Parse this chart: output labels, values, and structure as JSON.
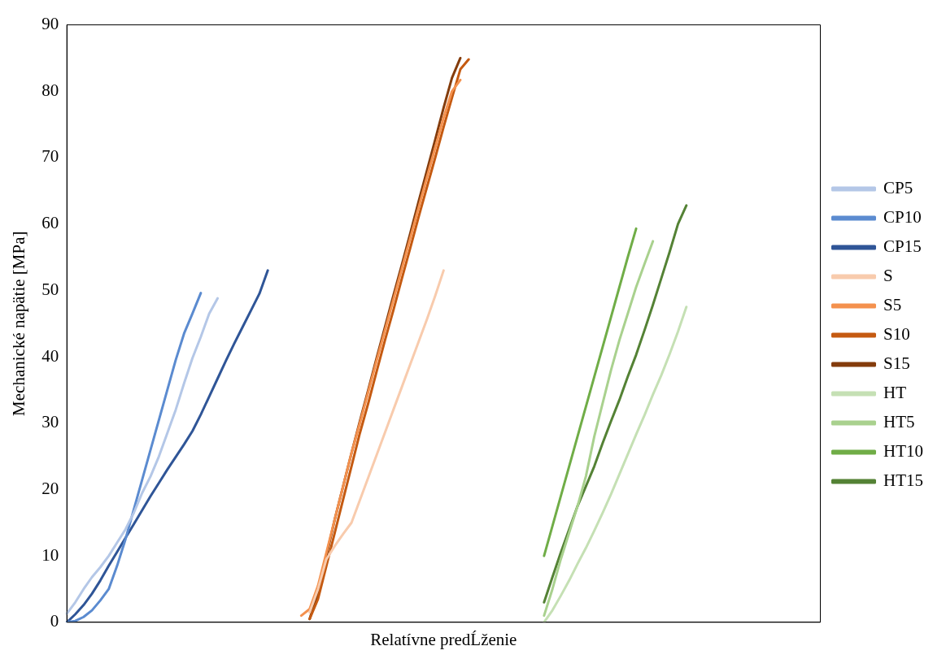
{
  "chart_data": {
    "type": "line",
    "xlabel": "Relatívne predĹženie",
    "ylabel": "Mechanické napätie [MPa]",
    "ylim": [
      0,
      90
    ],
    "yticks": [
      0,
      10,
      20,
      30,
      40,
      50,
      60,
      70,
      80,
      90
    ],
    "grid": false,
    "legend": "right",
    "tick_labels": "y",
    "marker": "none",
    "line_style": "solid",
    "categories": [
      null,
      null,
      null,
      null,
      null,
      null,
      null,
      null,
      null,
      null,
      null,
      null,
      null,
      null,
      null,
      null,
      null,
      null,
      null,
      null,
      null,
      null,
      null,
      null,
      null,
      null,
      null,
      null,
      null,
      null,
      null,
      null,
      null,
      null,
      null,
      null,
      null,
      null,
      null,
      null,
      null,
      null,
      null,
      null,
      null,
      null,
      null,
      null,
      null,
      null,
      null,
      null,
      null,
      null,
      null,
      null,
      null,
      null,
      null,
      null,
      null,
      null,
      null,
      null,
      null,
      null,
      null,
      null,
      null,
      null,
      null,
      null,
      null,
      null,
      null,
      null,
      null,
      null,
      null,
      null,
      null,
      null,
      null,
      null,
      null,
      null,
      null,
      null,
      null,
      null,
      null
    ],
    "series": [
      {
        "name": "CP5",
        "color": "#b4c7e7",
        "values": [
          1.3,
          3,
          5,
          6.8,
          8.3,
          10,
          12,
          14,
          16.5,
          19.5,
          22,
          25,
          28.5,
          32,
          36,
          39.8,
          43,
          46.5,
          48.8,
          null,
          null,
          null,
          null,
          null,
          null,
          null,
          null,
          null,
          null,
          null,
          null,
          null,
          null,
          null,
          null,
          null,
          null,
          null,
          null,
          null,
          null,
          null,
          null,
          null,
          null,
          null,
          null,
          null,
          null,
          null,
          null,
          null,
          null,
          null,
          null,
          null,
          null,
          null,
          null,
          null,
          null,
          null,
          null,
          null,
          null,
          null,
          null,
          null,
          null,
          null,
          null,
          null,
          null,
          null,
          null,
          null,
          null,
          null,
          null,
          null,
          null,
          null,
          null,
          null,
          null,
          null,
          null,
          null,
          null,
          null,
          null
        ]
      },
      {
        "name": "CP10",
        "color": "#5b8bd0",
        "values": [
          0,
          0.2,
          0.8,
          1.8,
          3.3,
          5,
          8.5,
          12.5,
          17,
          21.5,
          26,
          30.5,
          35,
          39.5,
          43.5,
          46.5,
          49.6,
          null,
          null,
          null,
          null,
          null,
          null,
          null,
          null,
          null,
          null,
          null,
          null,
          null,
          null,
          null,
          null,
          null,
          null,
          null,
          null,
          null,
          null,
          null,
          null,
          null,
          null,
          null,
          null,
          null,
          null,
          null,
          null,
          null,
          null,
          null,
          null,
          null,
          null,
          null,
          null,
          null,
          null,
          null,
          null,
          null,
          null,
          null,
          null,
          null,
          null,
          null,
          null,
          null,
          null,
          null,
          null,
          null,
          null,
          null,
          null,
          null,
          null,
          null,
          null,
          null,
          null,
          null,
          null,
          null,
          null,
          null,
          null,
          null,
          null
        ]
      },
      {
        "name": "CP15",
        "color": "#2f5597",
        "values": [
          0,
          1.2,
          2.6,
          4.3,
          6.3,
          8.5,
          10.6,
          12.7,
          14.8,
          16.9,
          19,
          21,
          23,
          24.9,
          26.8,
          28.8,
          31.3,
          34,
          36.7,
          39.4,
          42,
          44.5,
          47,
          49.5,
          53,
          null,
          null,
          null,
          null,
          null,
          null,
          null,
          null,
          null,
          null,
          null,
          null,
          null,
          null,
          null,
          null,
          null,
          null,
          null,
          null,
          null,
          null,
          null,
          null,
          null,
          null,
          null,
          null,
          null,
          null,
          null,
          null,
          null,
          null,
          null,
          null,
          null,
          null,
          null,
          null,
          null,
          null,
          null,
          null,
          null,
          null,
          null,
          null,
          null,
          null,
          null,
          null,
          null,
          null,
          null,
          null,
          null,
          null,
          null,
          null,
          null,
          null,
          null,
          null,
          null,
          null
        ]
      },
      {
        "name": "S",
        "color": "#f8cbad",
        "values": [
          null,
          null,
          null,
          null,
          null,
          null,
          null,
          null,
          null,
          null,
          null,
          null,
          null,
          null,
          null,
          null,
          null,
          null,
          null,
          null,
          null,
          null,
          null,
          null,
          null,
          null,
          null,
          null,
          null,
          1.5,
          5,
          9.5,
          11.5,
          13.3,
          15,
          18.4,
          21.8,
          25.2,
          28.6,
          32,
          35.4,
          38.8,
          42.2,
          45.6,
          49.2,
          53,
          null,
          null,
          null,
          null,
          null,
          null,
          null,
          null,
          null,
          null,
          null,
          null,
          null,
          null,
          null,
          null,
          null,
          null,
          null,
          null,
          null,
          null,
          null,
          null,
          null,
          null,
          null,
          null,
          null,
          null,
          null,
          null,
          null,
          null,
          null,
          null,
          null,
          null,
          null,
          null,
          null,
          null,
          null,
          null,
          null
        ]
      },
      {
        "name": "S5",
        "color": "#f4914e",
        "values": [
          null,
          null,
          null,
          null,
          null,
          null,
          null,
          null,
          null,
          null,
          null,
          null,
          null,
          null,
          null,
          null,
          null,
          null,
          null,
          null,
          null,
          null,
          null,
          null,
          null,
          null,
          null,
          null,
          1,
          2,
          5.5,
          10.5,
          15.5,
          20.5,
          25.5,
          30,
          34.7,
          39.4,
          44,
          48.6,
          53.2,
          57.8,
          62.4,
          67,
          71.5,
          76,
          80,
          81.7,
          null,
          null,
          null,
          null,
          null,
          null,
          null,
          null,
          null,
          null,
          null,
          null,
          null,
          null,
          null,
          null,
          null,
          null,
          null,
          null,
          null,
          null,
          null,
          null,
          null,
          null,
          null,
          null,
          null,
          null,
          null,
          null,
          null,
          null,
          null,
          null,
          null,
          null,
          null,
          null,
          null,
          null,
          null
        ]
      },
      {
        "name": "S10",
        "color": "#c55a11",
        "values": [
          null,
          null,
          null,
          null,
          null,
          null,
          null,
          null,
          null,
          null,
          null,
          null,
          null,
          null,
          null,
          null,
          null,
          null,
          null,
          null,
          null,
          null,
          null,
          null,
          null,
          null,
          null,
          null,
          null,
          0.5,
          3.5,
          8.5,
          13.5,
          18.5,
          23.5,
          28.5,
          33,
          37.8,
          42.5,
          47,
          51.7,
          56.3,
          61,
          65.5,
          70,
          74.6,
          79,
          83.3,
          84.8,
          null,
          null,
          null,
          null,
          null,
          null,
          null,
          null,
          null,
          null,
          null,
          null,
          null,
          null,
          null,
          null,
          null,
          null,
          null,
          null,
          null,
          null,
          null,
          null,
          null,
          null,
          null,
          null,
          null,
          null,
          null,
          null,
          null,
          null,
          null,
          null,
          null,
          null,
          null,
          null,
          null,
          null
        ]
      },
      {
        "name": "S15",
        "color": "#843c0c",
        "values": [
          null,
          null,
          null,
          null,
          null,
          null,
          null,
          null,
          null,
          null,
          null,
          null,
          null,
          null,
          null,
          null,
          null,
          null,
          null,
          null,
          null,
          null,
          null,
          null,
          null,
          null,
          null,
          null,
          null,
          0.5,
          4.5,
          10,
          15.5,
          20.5,
          25.5,
          30.3,
          35,
          39.8,
          44.5,
          49.2,
          53.8,
          58.5,
          63.3,
          68,
          72.7,
          77.5,
          82,
          85,
          null,
          null,
          null,
          null,
          null,
          null,
          null,
          null,
          null,
          null,
          null,
          null,
          null,
          null,
          null,
          null,
          null,
          null,
          null,
          null,
          null,
          null,
          null,
          null,
          null,
          null,
          null,
          null,
          null,
          null,
          null,
          null,
          null,
          null,
          null,
          null,
          null,
          null,
          null,
          null,
          null,
          null,
          null
        ]
      },
      {
        "name": "HT",
        "color": "#c5e0b4",
        "values": [
          null,
          null,
          null,
          null,
          null,
          null,
          null,
          null,
          null,
          null,
          null,
          null,
          null,
          null,
          null,
          null,
          null,
          null,
          null,
          null,
          null,
          null,
          null,
          null,
          null,
          null,
          null,
          null,
          null,
          null,
          null,
          null,
          null,
          null,
          null,
          null,
          null,
          null,
          null,
          null,
          null,
          null,
          null,
          null,
          null,
          null,
          null,
          null,
          null,
          null,
          null,
          null,
          null,
          null,
          null,
          null,
          null,
          0,
          1.8,
          4,
          6.3,
          8.8,
          11.2,
          13.8,
          16.5,
          19.3,
          22.3,
          25.3,
          28.3,
          31.2,
          34.3,
          37.2,
          40.4,
          43.8,
          47.5,
          null,
          null,
          null,
          null,
          null,
          null,
          null,
          null,
          null,
          null,
          null,
          null,
          null,
          null,
          null,
          null
        ]
      },
      {
        "name": "HT5",
        "color": "#a9d18e",
        "values": [
          null,
          null,
          null,
          null,
          null,
          null,
          null,
          null,
          null,
          null,
          null,
          null,
          null,
          null,
          null,
          null,
          null,
          null,
          null,
          null,
          null,
          null,
          null,
          null,
          null,
          null,
          null,
          null,
          null,
          null,
          null,
          null,
          null,
          null,
          null,
          null,
          null,
          null,
          null,
          null,
          null,
          null,
          null,
          null,
          null,
          null,
          null,
          null,
          null,
          null,
          null,
          null,
          null,
          null,
          null,
          null,
          null,
          1,
          5,
          9.5,
          13.5,
          17.5,
          22,
          28,
          33,
          38,
          42.5,
          46.5,
          50.5,
          54,
          57.4,
          null,
          null,
          null,
          null,
          null,
          null,
          null,
          null,
          null,
          null,
          null,
          null,
          null,
          null,
          null,
          null,
          null,
          null,
          null,
          null
        ]
      },
      {
        "name": "HT10",
        "color": "#70ad47",
        "values": [
          null,
          null,
          null,
          null,
          null,
          null,
          null,
          null,
          null,
          null,
          null,
          null,
          null,
          null,
          null,
          null,
          null,
          null,
          null,
          null,
          null,
          null,
          null,
          null,
          null,
          null,
          null,
          null,
          null,
          null,
          null,
          null,
          null,
          null,
          null,
          null,
          null,
          null,
          null,
          null,
          null,
          null,
          null,
          null,
          null,
          null,
          null,
          null,
          null,
          null,
          null,
          null,
          null,
          null,
          null,
          null,
          null,
          10,
          14.5,
          19,
          23.5,
          28,
          32.5,
          37,
          41.5,
          46,
          50.5,
          55,
          59.3,
          null,
          null,
          null,
          null,
          null,
          null,
          null,
          null,
          null,
          null,
          null,
          null,
          null,
          null,
          null,
          null,
          null,
          null,
          null,
          null,
          null,
          null
        ]
      },
      {
        "name": "HT15",
        "color": "#548235",
        "values": [
          null,
          null,
          null,
          null,
          null,
          null,
          null,
          null,
          null,
          null,
          null,
          null,
          null,
          null,
          null,
          null,
          null,
          null,
          null,
          null,
          null,
          null,
          null,
          null,
          null,
          null,
          null,
          null,
          null,
          null,
          null,
          null,
          null,
          null,
          null,
          null,
          null,
          null,
          null,
          null,
          null,
          null,
          null,
          null,
          null,
          null,
          null,
          null,
          null,
          null,
          null,
          null,
          null,
          null,
          null,
          null,
          null,
          3,
          6.8,
          10.5,
          14,
          17.5,
          20.5,
          23.5,
          27,
          30.3,
          33.5,
          37,
          40.3,
          44,
          47.8,
          51.8,
          55.8,
          60,
          62.8,
          null,
          null,
          null,
          null,
          null,
          null,
          null,
          null,
          null,
          null,
          null,
          null,
          null,
          null,
          null,
          null
        ]
      }
    ]
  }
}
